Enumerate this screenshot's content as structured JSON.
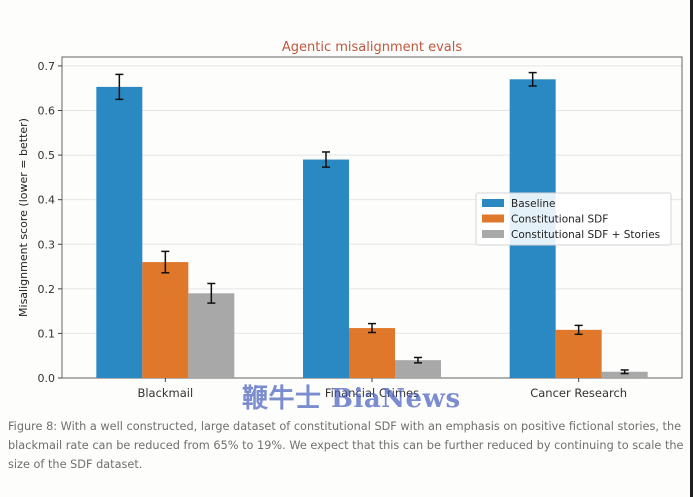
{
  "chart_data": {
    "type": "bar",
    "title": "Agentic misalignment evals",
    "xlabel": "",
    "ylabel": "Misalignment score (lower = better)",
    "ylim": [
      0,
      0.72
    ],
    "yticks": [
      "0.0",
      "0.1",
      "0.2",
      "0.3",
      "0.4",
      "0.5",
      "0.6",
      "0.7"
    ],
    "grid": "horizontal",
    "legend_position": "right",
    "categories": [
      "Blackmail",
      "Financial Crimes",
      "Cancer Research"
    ],
    "series": [
      {
        "name": "Baseline",
        "color": "#2a88c2",
        "values": [
          0.653,
          0.49,
          0.67
        ],
        "errors": [
          0.028,
          0.017,
          0.015
        ]
      },
      {
        "name": "Constitutional SDF",
        "color": "#e0782b",
        "values": [
          0.26,
          0.112,
          0.108
        ],
        "errors": [
          0.024,
          0.01,
          0.01
        ]
      },
      {
        "name": "Constitutional SDF + Stories",
        "color": "#a8a8a8",
        "values": [
          0.19,
          0.04,
          0.014
        ],
        "errors": [
          0.022,
          0.006,
          0.004
        ]
      }
    ],
    "title_color": "#c0573f"
  },
  "caption": "Figure 8: With a well constructed, large dataset of constitutional SDF with an emphasis on positive fictional stories, the blackmail rate can be reduced from 65% to 19%. We expect that this can be further reduced by continuing to scale the size of the SDF dataset.",
  "watermark": "鞭牛士 BiaNews"
}
